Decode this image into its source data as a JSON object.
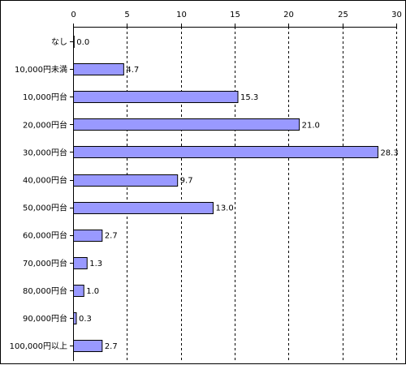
{
  "chart_data": {
    "type": "bar",
    "orientation": "horizontal",
    "title": "",
    "xlabel": "",
    "ylabel": "",
    "xlim": [
      0,
      30
    ],
    "x_ticks": [
      0,
      5,
      10,
      15,
      20,
      25,
      30
    ],
    "x_axis_position": "top",
    "grid": "vertical dashed",
    "legend": "none",
    "bar_color": "#9999ff",
    "categories": [
      "なし",
      "10,000円未満",
      "10,000円台",
      "20,000円台",
      "30,000円台",
      "40,000円台",
      "50,000円台",
      "60,000円台",
      "70,000円台",
      "80,000円台",
      "90,000円台",
      "100,000円以上"
    ],
    "values": [
      0.0,
      4.7,
      15.3,
      21.0,
      28.3,
      9.7,
      13.0,
      2.7,
      1.3,
      1.0,
      0.3,
      2.7
    ],
    "value_labels": [
      "0.0",
      "4.7",
      "15.3",
      "21.0",
      "28.3",
      "9.7",
      "13.0",
      "2.7",
      "1.3",
      "1.0",
      "0.3",
      "2.7"
    ]
  }
}
